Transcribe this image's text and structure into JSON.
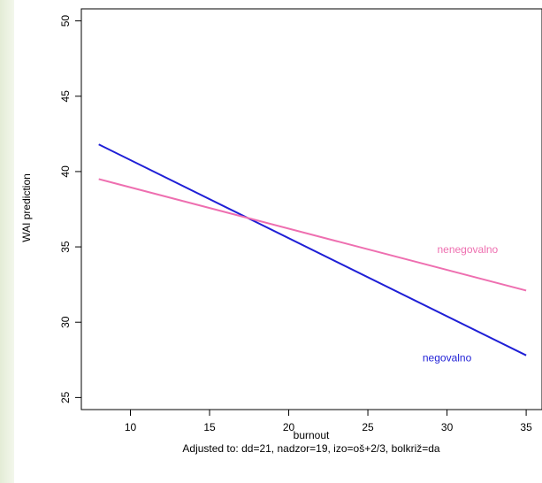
{
  "chart_data": {
    "type": "line",
    "title": "",
    "xlabel": "burnout",
    "subtitle": "Adjusted to: dd=21, nadzor=19, izo=oš+2/3, bolkriž=da",
    "ylabel": "WAI prediction",
    "xlim": [
      6.9,
      36
    ],
    "ylim": [
      24.2,
      50.8
    ],
    "x_ticks": [
      "10",
      "15",
      "20",
      "25",
      "30",
      "35"
    ],
    "y_ticks": [
      "25",
      "30",
      "35",
      "40",
      "45",
      "50"
    ],
    "grid": false,
    "legend": "none",
    "series": [
      {
        "name": "negovalno",
        "color": "#1f1fd6",
        "x": [
          8,
          35
        ],
        "y": [
          41.8,
          27.8
        ]
      },
      {
        "name": "nenegovalno",
        "color": "#ee6fb0",
        "x": [
          8,
          35
        ],
        "y": [
          39.5,
          32.1
        ]
      }
    ],
    "annotations": [
      {
        "text": "nenegovalno",
        "color": "#ee6fb0",
        "x": 31.3,
        "y": 34.6
      },
      {
        "text": "negovalno",
        "color": "#1f1fd6",
        "x": 30.0,
        "y": 27.4
      }
    ]
  }
}
